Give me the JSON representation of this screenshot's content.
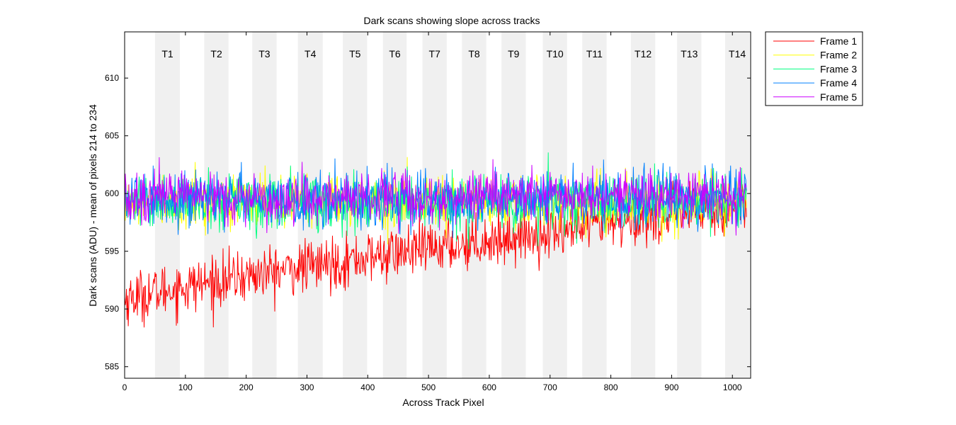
{
  "chart_data": {
    "type": "line",
    "title": "Dark scans showing slope across tracks",
    "xlabel": "Across Track Pixel",
    "ylabel": "Dark scans (ADU) - mean of pixels 214 to 234",
    "xlim": [
      0,
      1030
    ],
    "ylim": [
      584,
      614
    ],
    "xticks": [
      0,
      100,
      200,
      300,
      400,
      500,
      600,
      700,
      800,
      900,
      1000
    ],
    "yticks": [
      585,
      590,
      595,
      600,
      605,
      610
    ],
    "grid": false,
    "legend_position": "outside-top-right",
    "tracks": [
      {
        "label": "T1",
        "start": 50,
        "end": 91
      },
      {
        "label": "T2",
        "start": 131,
        "end": 171
      },
      {
        "label": "T3",
        "start": 210,
        "end": 250
      },
      {
        "label": "T4",
        "start": 285,
        "end": 326
      },
      {
        "label": "T5",
        "start": 359,
        "end": 399
      },
      {
        "label": "T6",
        "start": 425,
        "end": 464
      },
      {
        "label": "T7",
        "start": 490,
        "end": 530
      },
      {
        "label": "T8",
        "start": 555,
        "end": 595
      },
      {
        "label": "T9",
        "start": 620,
        "end": 660
      },
      {
        "label": "T10",
        "start": 688,
        "end": 728
      },
      {
        "label": "T11",
        "start": 753,
        "end": 793
      },
      {
        "label": "T12",
        "start": 833,
        "end": 873
      },
      {
        "label": "T13",
        "start": 909,
        "end": 949
      },
      {
        "label": "T14",
        "start": 988,
        "end": 1028
      }
    ],
    "series": [
      {
        "name": "Frame 1",
        "color": "#ff0000",
        "start_mean": 590.8,
        "end_mean": 598.9,
        "noise_amplitude": 1.5
      },
      {
        "name": "Frame 2",
        "color": "#ffff00",
        "start_mean": 599.3,
        "end_mean": 599.3,
        "noise_amplitude": 1.5
      },
      {
        "name": "Frame 3",
        "color": "#00ff80",
        "start_mean": 599.3,
        "end_mean": 599.3,
        "noise_amplitude": 1.6
      },
      {
        "name": "Frame 4",
        "color": "#0080ff",
        "start_mean": 599.5,
        "end_mean": 599.6,
        "noise_amplitude": 1.6
      },
      {
        "name": "Frame 5",
        "color": "#cc00ff",
        "start_mean": 599.6,
        "end_mean": 599.8,
        "noise_amplitude": 1.4
      }
    ],
    "n_pixels": 1024
  }
}
